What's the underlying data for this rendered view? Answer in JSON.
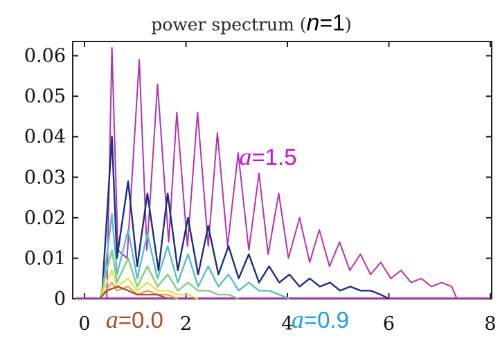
{
  "chart_data": {
    "type": "line",
    "title": {
      "prefix": "power spectrum (",
      "variable": "n",
      "eq": "=1",
      "suffix": ")"
    },
    "xlabel": "",
    "ylabel": "",
    "xlim": [
      0,
      8
    ],
    "ylim": [
      0,
      0.063
    ],
    "x_ticks": [
      {
        "value": 0,
        "label": "0"
      },
      {
        "value": 2,
        "label": "2"
      },
      {
        "value": 4,
        "label": "4"
      },
      {
        "value": 6,
        "label": "6"
      },
      {
        "value": 8,
        "label": "8"
      }
    ],
    "y_ticks": [
      {
        "value": 0,
        "label": "0"
      },
      {
        "value": 0.01,
        "label": "0.01"
      },
      {
        "value": 0.02,
        "label": "0.02"
      },
      {
        "value": 0.03,
        "label": "0.03"
      },
      {
        "value": 0.04,
        "label": "0.04"
      },
      {
        "value": 0.05,
        "label": "0.05"
      },
      {
        "value": 0.06,
        "label": "0.06"
      }
    ],
    "grid": false,
    "series": [
      {
        "color": "#b233b2",
        "x": [
          0.44,
          0.54,
          0.66,
          0.84,
          1.08,
          1.23,
          1.44,
          1.66,
          1.82,
          2.03,
          2.23,
          2.44,
          2.62,
          2.82,
          3.03,
          3.24,
          3.44,
          3.62,
          3.83,
          4.02,
          4.24,
          4.44,
          4.63,
          4.83,
          5.03,
          5.23,
          5.44,
          5.64,
          5.84,
          6.04,
          6.24,
          6.44,
          6.64,
          6.84,
          7.04,
          7.24,
          7.34
        ],
        "y": [
          0.0,
          0.062,
          0.012,
          0.01,
          0.059,
          0.012,
          0.053,
          0.014,
          0.046,
          0.013,
          0.046,
          0.013,
          0.041,
          0.013,
          0.036,
          0.012,
          0.031,
          0.011,
          0.026,
          0.01,
          0.02,
          0.009,
          0.017,
          0.008,
          0.014,
          0.007,
          0.011,
          0.006,
          0.009,
          0.005,
          0.007,
          0.004,
          0.005,
          0.003,
          0.004,
          0.003,
          0.0
        ]
      },
      {
        "color": "#1b2d80",
        "x": [
          0.34,
          0.54,
          0.64,
          0.86,
          1.04,
          1.24,
          1.46,
          1.64,
          1.84,
          2.04,
          2.24,
          2.44,
          2.64,
          2.84,
          3.04,
          3.24,
          3.44,
          3.64,
          3.84,
          4.04,
          4.24,
          4.44,
          4.64,
          4.84,
          5.04,
          5.24,
          5.44,
          5.64,
          5.84,
          6.0
        ],
        "y": [
          0.0,
          0.04,
          0.01,
          0.029,
          0.008,
          0.026,
          0.007,
          0.026,
          0.007,
          0.02,
          0.006,
          0.018,
          0.006,
          0.013,
          0.005,
          0.011,
          0.004,
          0.008,
          0.004,
          0.006,
          0.003,
          0.005,
          0.003,
          0.004,
          0.002,
          0.003,
          0.002,
          0.002,
          0.001,
          0.0
        ]
      },
      {
        "color": "#55bfcc",
        "x": [
          0.34,
          0.54,
          0.64,
          0.86,
          1.04,
          1.24,
          1.44,
          1.64,
          1.84,
          2.04,
          2.24,
          2.44,
          2.64,
          2.84,
          3.04,
          3.24,
          3.44,
          3.64,
          3.84,
          4.04
        ],
        "y": [
          0.0,
          0.021,
          0.006,
          0.017,
          0.005,
          0.016,
          0.005,
          0.013,
          0.004,
          0.011,
          0.003,
          0.008,
          0.003,
          0.006,
          0.002,
          0.004,
          0.002,
          0.002,
          0.001,
          0.0
        ]
      },
      {
        "color": "#7fcf7f",
        "x": [
          0.3,
          0.54,
          0.64,
          0.86,
          1.04,
          1.24,
          1.44,
          1.64,
          1.84,
          2.04,
          2.24,
          2.44,
          2.64,
          2.84,
          3.04
        ],
        "y": [
          0.0,
          0.012,
          0.004,
          0.01,
          0.003,
          0.008,
          0.003,
          0.006,
          0.002,
          0.004,
          0.002,
          0.002,
          0.001,
          0.001,
          0.0
        ]
      },
      {
        "color": "#e2e24a",
        "x": [
          0.3,
          0.54,
          0.64,
          0.86,
          1.04,
          1.24,
          1.44,
          1.64,
          1.84,
          2.04,
          2.24
        ],
        "y": [
          0.0,
          0.007,
          0.003,
          0.005,
          0.002,
          0.004,
          0.002,
          0.002,
          0.001,
          0.001,
          0.0
        ]
      },
      {
        "color": "#f0a050",
        "x": [
          0.3,
          0.54,
          0.64,
          0.86,
          1.04,
          1.24,
          1.44,
          1.64,
          1.84
        ],
        "y": [
          0.0,
          0.004,
          0.002,
          0.003,
          0.001,
          0.002,
          0.001,
          0.001,
          0.0
        ]
      },
      {
        "color": "#a0522d",
        "x": [
          0.3,
          0.44,
          0.66,
          0.86,
          1.04,
          1.24,
          1.44,
          1.64
        ],
        "y": [
          0.0,
          0.002,
          0.003,
          0.002,
          0.001,
          0.001,
          0.001,
          0.0
        ]
      }
    ],
    "annotations": [
      {
        "name": "annotation-a-1-5",
        "italic": "a",
        "text": "=1.5",
        "color": "#cc11cc",
        "x": 3.05,
        "y": 0.033
      },
      {
        "name": "annotation-a-0-0",
        "italic": "a",
        "text": "=0.0",
        "color": "#a0522d",
        "x": 0.42,
        "y": -0.0072
      },
      {
        "name": "annotation-a-0-9",
        "italic": "a",
        "text": "=0.9",
        "color": "#1aa0e0",
        "x": 4.08,
        "y": -0.0072
      }
    ]
  }
}
